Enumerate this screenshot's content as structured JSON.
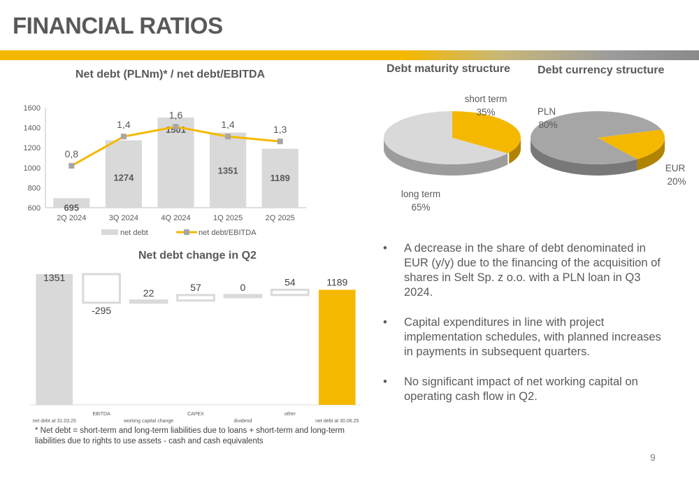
{
  "page": {
    "title": "FINANCIAL RATIOS",
    "page_number": "9",
    "footnote": "* Net debt = short-term and long-term liabilities due to loans + short-term and long-term liabilities due to rights to use assets - cash and cash equivalents"
  },
  "colors": {
    "accent": "#F5B800",
    "bar_gray": "#D9D9D9",
    "text": "#595959",
    "pie_gray": "#A6A6A6"
  },
  "bullets": [
    "A decrease in the share of debt denominated in EUR (y/y) due to the financing of the acquisition of shares in Selt Sp. z o.o. with a PLN loan in Q3 2024.",
    "Capital expenditures in line with project implementation schedules, with planned increases in payments in subsequent quarters.",
    "No significant impact of net working capital on operating cash flow in Q2."
  ],
  "chart_data": [
    {
      "type": "bar",
      "title": "Net debt (PLNm)* / net debt/EBITDA",
      "categories": [
        "2Q 2024",
        "3Q 2024",
        "4Q 2024",
        "1Q 2025",
        "2Q 2025"
      ],
      "series": [
        {
          "name": "net debt",
          "type": "bar",
          "values": [
            695,
            1274,
            1501,
            1351,
            1189
          ],
          "labels": [
            "695",
            "1274",
            "1501",
            "1351",
            "1189"
          ]
        },
        {
          "name": "net debt/EBITDA",
          "type": "line",
          "values": [
            0.8,
            1.4,
            1.6,
            1.4,
            1.3
          ],
          "labels": [
            "0,8",
            "1,4",
            "1,6",
            "1,4",
            "1,3"
          ]
        }
      ],
      "y_ticks": [
        "600",
        "800",
        "1000",
        "1200",
        "1400",
        "1600"
      ],
      "ylim": [
        600,
        1600
      ],
      "legend": "bottom"
    },
    {
      "type": "waterfall",
      "title": "Net debt change in Q2",
      "categories": [
        "net debt at 31.03.25",
        "EBITDA",
        "working capital change",
        "CAPEX",
        "dividend",
        "other",
        "net debt at 30.06.25"
      ],
      "values": [
        1351,
        -295,
        22,
        57,
        0,
        54,
        1189
      ],
      "labels": [
        "1351",
        "-295",
        "22",
        "57",
        "0",
        "54",
        "1189"
      ],
      "kinds": [
        "total",
        "delta",
        "delta",
        "delta",
        "delta",
        "delta",
        "total"
      ]
    },
    {
      "type": "pie",
      "title": "Debt maturity structure",
      "slices": [
        {
          "label": "short term",
          "value": 35,
          "value_label": "35%",
          "color": "#F5B800"
        },
        {
          "label": "long term",
          "value": 65,
          "value_label": "65%",
          "color": "#D9D9D9"
        }
      ]
    },
    {
      "type": "pie",
      "title": "Debt currency structure",
      "slices": [
        {
          "label": "PLN",
          "value": 80,
          "value_label": "80%",
          "color": "#A6A6A6"
        },
        {
          "label": "EUR",
          "value": 20,
          "value_label": "20%",
          "color": "#F5B800"
        }
      ]
    }
  ]
}
